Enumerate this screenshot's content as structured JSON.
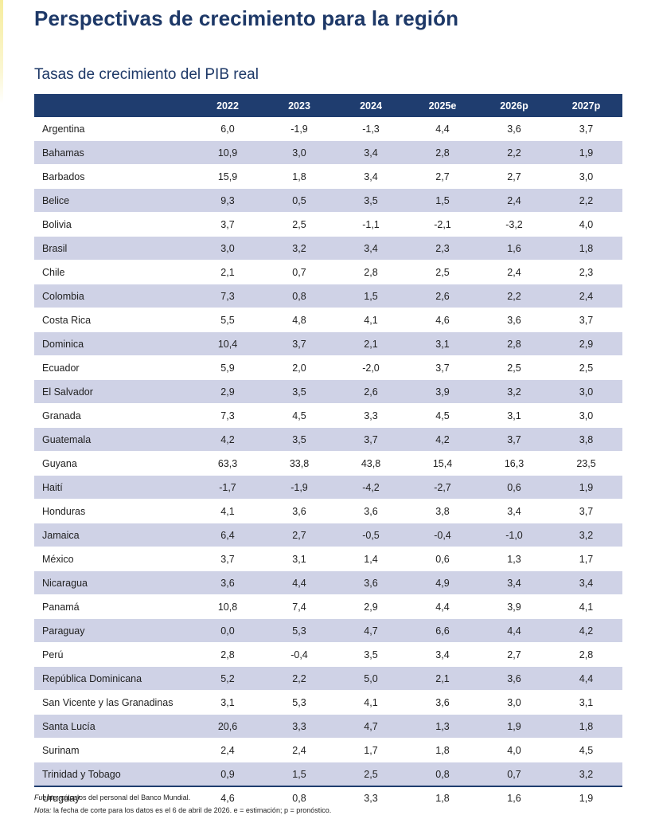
{
  "title": "Perspectivas de crecimiento para la región",
  "subtitle": "Tasas de crecimiento del PIB real",
  "table": {
    "headers": [
      "",
      "2022",
      "2023",
      "2024",
      "2025e",
      "2026p",
      "2027p"
    ],
    "rows": [
      [
        "Argentina",
        "6,0",
        "-1,9",
        "-1,3",
        "4,4",
        "3,6",
        "3,7"
      ],
      [
        "Bahamas",
        "10,9",
        "3,0",
        "3,4",
        "2,8",
        "2,2",
        "1,9"
      ],
      [
        "Barbados",
        "15,9",
        "1,8",
        "3,4",
        "2,7",
        "2,7",
        "3,0"
      ],
      [
        "Belice",
        "9,3",
        "0,5",
        "3,5",
        "1,5",
        "2,4",
        "2,2"
      ],
      [
        "Bolivia",
        "3,7",
        "2,5",
        "-1,1",
        "-2,1",
        "-3,2",
        "4,0"
      ],
      [
        "Brasil",
        "3,0",
        "3,2",
        "3,4",
        "2,3",
        "1,6",
        "1,8"
      ],
      [
        "Chile",
        "2,1",
        "0,7",
        "2,8",
        "2,5",
        "2,4",
        "2,3"
      ],
      [
        "Colombia",
        "7,3",
        "0,8",
        "1,5",
        "2,6",
        "2,2",
        "2,4"
      ],
      [
        "Costa Rica",
        "5,5",
        "4,8",
        "4,1",
        "4,6",
        "3,6",
        "3,7"
      ],
      [
        "Dominica",
        "10,4",
        "3,7",
        "2,1",
        "3,1",
        "2,8",
        "2,9"
      ],
      [
        "Ecuador",
        "5,9",
        "2,0",
        "-2,0",
        "3,7",
        "2,5",
        "2,5"
      ],
      [
        "El Salvador",
        "2,9",
        "3,5",
        "2,6",
        "3,9",
        "3,2",
        "3,0"
      ],
      [
        "Granada",
        "7,3",
        "4,5",
        "3,3",
        "4,5",
        "3,1",
        "3,0"
      ],
      [
        "Guatemala",
        "4,2",
        "3,5",
        "3,7",
        "4,2",
        "3,7",
        "3,8"
      ],
      [
        "Guyana",
        "63,3",
        "33,8",
        "43,8",
        "15,4",
        "16,3",
        "23,5"
      ],
      [
        "Haití",
        "-1,7",
        "-1,9",
        "-4,2",
        "-2,7",
        "0,6",
        "1,9"
      ],
      [
        "Honduras",
        "4,1",
        "3,6",
        "3,6",
        "3,8",
        "3,4",
        "3,7"
      ],
      [
        "Jamaica",
        "6,4",
        "2,7",
        "-0,5",
        "-0,4",
        "-1,0",
        "3,2"
      ],
      [
        "México",
        "3,7",
        "3,1",
        "1,4",
        "0,6",
        "1,3",
        "1,7"
      ],
      [
        "Nicaragua",
        "3,6",
        "4,4",
        "3,6",
        "4,9",
        "3,4",
        "3,4"
      ],
      [
        "Panamá",
        "10,8",
        "7,4",
        "2,9",
        "4,4",
        "3,9",
        "4,1"
      ],
      [
        "Paraguay",
        "0,0",
        "5,3",
        "4,7",
        "6,6",
        "4,4",
        "4,2"
      ],
      [
        "Perú",
        "2,8",
        "-0,4",
        "3,5",
        "3,4",
        "2,7",
        "2,8"
      ],
      [
        "República Dominicana",
        "5,2",
        "2,2",
        "5,0",
        "2,1",
        "3,6",
        "4,4"
      ],
      [
        "San Vicente y las Granadinas",
        "3,1",
        "5,3",
        "4,1",
        "3,6",
        "3,0",
        "3,1"
      ],
      [
        "Santa Lucía",
        "20,6",
        "3,3",
        "4,7",
        "1,3",
        "1,9",
        "1,8"
      ],
      [
        "Surinam",
        "2,4",
        "2,4",
        "1,7",
        "1,8",
        "4,0",
        "4,5"
      ],
      [
        "Trinidad y Tobago",
        "0,9",
        "1,5",
        "2,5",
        "0,8",
        "0,7",
        "3,2"
      ],
      [
        "Uruguay",
        "4,6",
        "0,8",
        "3,3",
        "1,8",
        "1,6",
        "1,9"
      ]
    ]
  },
  "footnotes": {
    "source_label": "Fuente:",
    "source_text": " cálculos del personal del Banco Mundial.",
    "note_label": "Nota:",
    "note_text": " la fecha de corte para los datos es el 6 de abril de 2026. e = estimación; p = pronóstico."
  },
  "colors": {
    "header_bg": "#1f3d6f",
    "title": "#1d3867",
    "stripe": "#cfd2e6",
    "accent": "#f6ec9c"
  }
}
